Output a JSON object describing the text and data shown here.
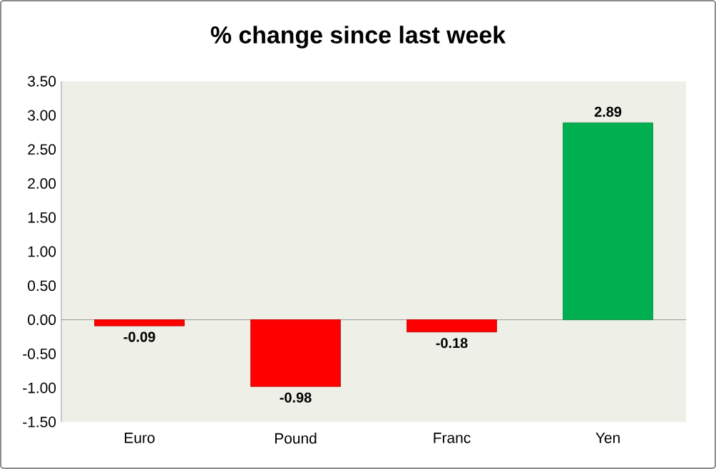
{
  "chart_data": {
    "type": "bar",
    "title": "% change since last week",
    "categories": [
      "Euro",
      "Pound",
      "Franc",
      "Yen"
    ],
    "values": [
      -0.09,
      -0.98,
      -0.18,
      2.89
    ],
    "colors": [
      "#ff0000",
      "#ff0000",
      "#ff0000",
      "#00b050"
    ],
    "ylim": [
      -1.5,
      3.5
    ],
    "yticks": [
      {
        "value": -1.5,
        "label": "-1.50"
      },
      {
        "value": -1.0,
        "label": "-1.00"
      },
      {
        "value": -0.5,
        "label": "-0.50"
      },
      {
        "value": 0,
        "label": "0.00"
      },
      {
        "value": 0.5,
        "label": "0.50"
      },
      {
        "value": 1.0,
        "label": "1.00"
      },
      {
        "value": 1.5,
        "label": "1.50"
      },
      {
        "value": 2.0,
        "label": "2.00"
      },
      {
        "value": 2.5,
        "label": "2.50"
      },
      {
        "value": 3.0,
        "label": "3.00"
      },
      {
        "value": 3.5,
        "label": "3.50"
      }
    ],
    "data_labels": true
  }
}
